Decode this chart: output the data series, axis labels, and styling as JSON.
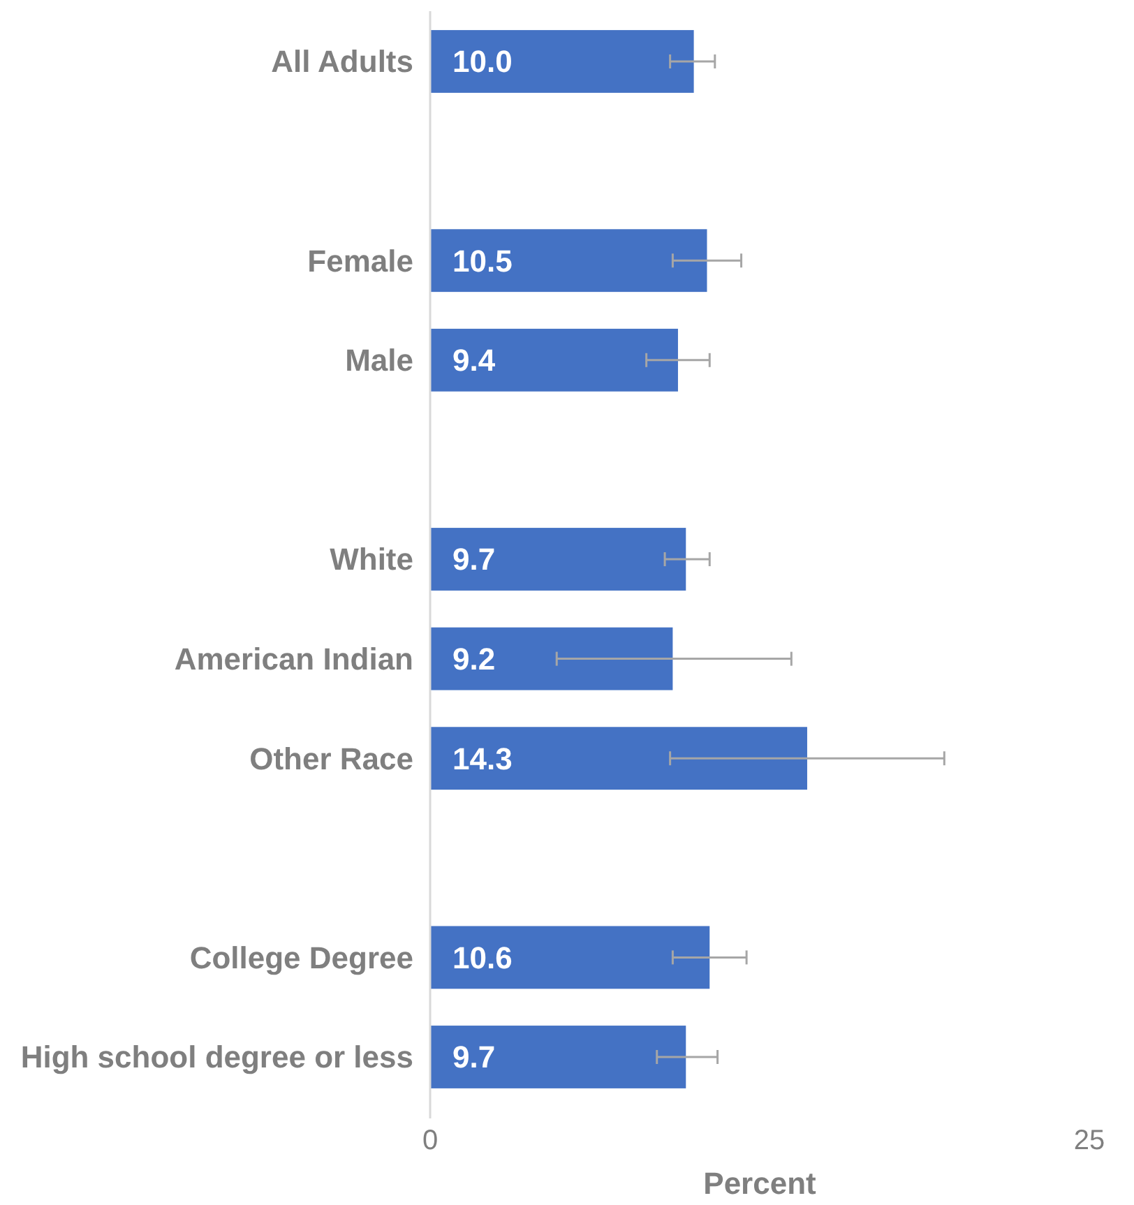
{
  "chart_data": {
    "type": "bar",
    "orientation": "horizontal",
    "xlabel": "Percent",
    "categories": [
      "All Adults",
      null,
      "Female",
      "Male",
      null,
      "White",
      "American Indian",
      "Other Race",
      null,
      "College Degree",
      "High school degree or less"
    ],
    "values": [
      10.0,
      null,
      10.5,
      9.4,
      null,
      9.7,
      9.2,
      14.3,
      null,
      10.6,
      9.7
    ],
    "value_labels": [
      "10.0",
      null,
      "10.5",
      "9.4",
      null,
      "9.7",
      "9.2",
      "14.3",
      null,
      "10.6",
      "9.7"
    ],
    "errors": [
      [
        9.1,
        10.8
      ],
      null,
      [
        9.2,
        11.8
      ],
      [
        8.2,
        10.6
      ],
      null,
      [
        8.9,
        10.6
      ],
      [
        4.8,
        13.7
      ],
      [
        9.1,
        19.5
      ],
      null,
      [
        9.2,
        12.0
      ],
      [
        8.6,
        10.9
      ]
    ],
    "color": "#4472c4",
    "xlim": [
      0,
      25
    ],
    "xticks": [
      0,
      25
    ]
  }
}
